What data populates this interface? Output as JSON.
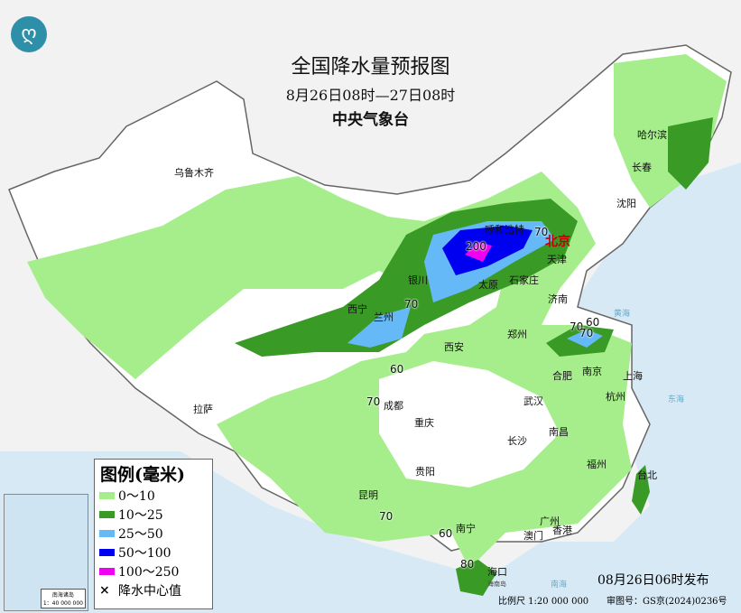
{
  "header": {
    "title": "全国降水量预报图",
    "period": "8月26日08时—27日08时",
    "agency": "中央气象台",
    "logo_icon": "cma-logo-icon"
  },
  "legend": {
    "title": "图例(毫米)",
    "items": [
      {
        "label": "0～10",
        "color": "#a6ee8c"
      },
      {
        "label": "10～25",
        "color": "#3a9a26"
      },
      {
        "label": "25～50",
        "color": "#66b9f7"
      },
      {
        "label": "50～100",
        "color": "#0000f0"
      },
      {
        "label": "100～250",
        "color": "#f000f0"
      }
    ],
    "center_marker": "×",
    "center_label": "降水中心值"
  },
  "cities": {
    "capital": "北京",
    "others": [
      "乌鲁木齐",
      "哈尔滨",
      "长春",
      "沈阳",
      "呼和浩特",
      "天津",
      "石家庄",
      "太原",
      "银川",
      "兰州",
      "西宁",
      "济南",
      "郑州",
      "西安",
      "合肥",
      "南京",
      "上海",
      "杭州",
      "武汉",
      "南昌",
      "长沙",
      "成都",
      "重庆",
      "贵阳",
      "昆明",
      "拉萨",
      "福州",
      "台北",
      "南宁",
      "广州",
      "澳门",
      "香港",
      "海口"
    ]
  },
  "seas": [
    "黄海",
    "东海",
    "南海",
    "海南岛"
  ],
  "centers": [
    "200",
    "70",
    "70",
    "70",
    "70",
    "60",
    "60",
    "70",
    "70",
    "60",
    "80"
  ],
  "inset": {
    "caption": "南海诸岛",
    "scale": "1：40 000 000"
  },
  "footer": {
    "issued": "08月26日06时发布",
    "scale": "比例尺 1:20 000 000",
    "approval": "审图号：GS京(2024)0236号"
  }
}
